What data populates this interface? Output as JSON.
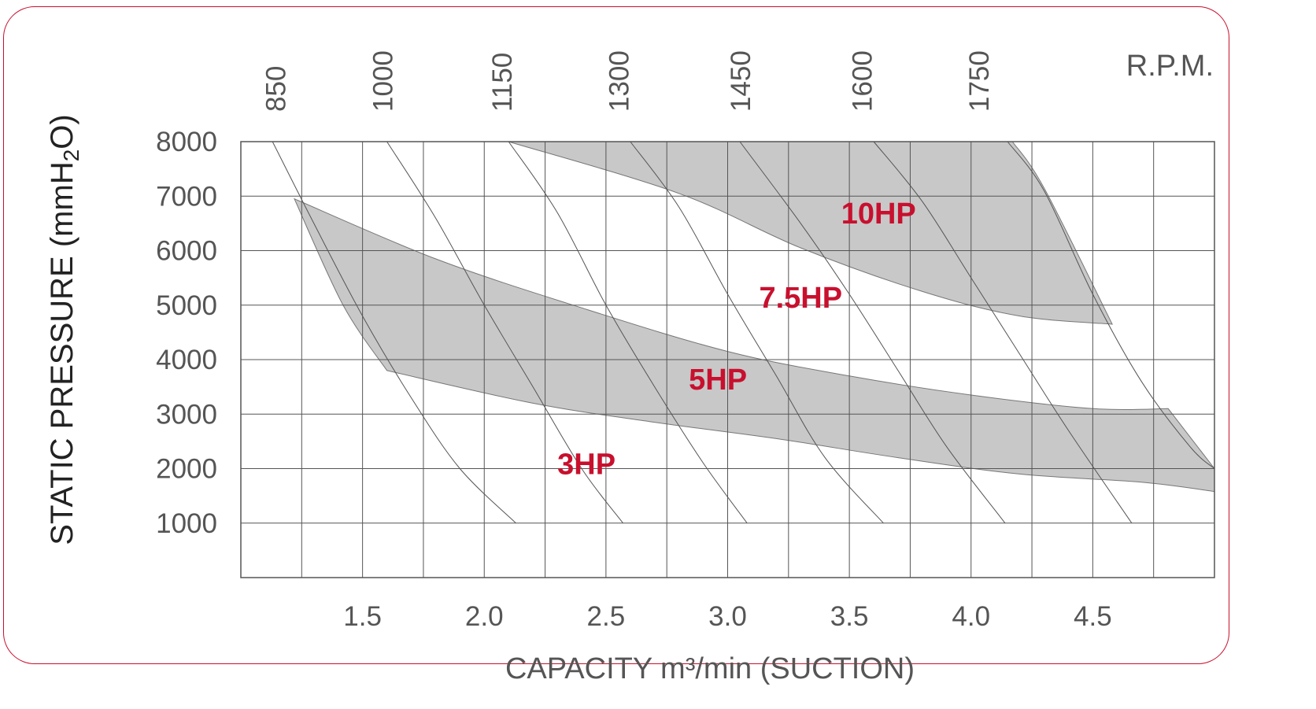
{
  "chart_data": {
    "type": "line",
    "xlabel": "CAPACITY m³/min (SUCTION)",
    "ylabel": "STATIC PRESSURE (mmH",
    "ylabel_sub": "2",
    "ylabel_end": "O)",
    "x2label": "R.P.M.",
    "xlim": [
      1.0,
      5.0
    ],
    "ylim": [
      0,
      8000
    ],
    "grid": true,
    "x_ticks": [
      {
        "v": 1.5,
        "label": "1.5"
      },
      {
        "v": 2.0,
        "label": "2.0"
      },
      {
        "v": 2.5,
        "label": "2.5"
      },
      {
        "v": 3.0,
        "label": "3.0"
      },
      {
        "v": 3.5,
        "label": "3.5"
      },
      {
        "v": 4.0,
        "label": "4.0"
      },
      {
        "v": 4.5,
        "label": "4.5"
      }
    ],
    "y_ticks": [
      {
        "v": 1000,
        "label": "1000"
      },
      {
        "v": 2000,
        "label": "2000"
      },
      {
        "v": 3000,
        "label": "3000"
      },
      {
        "v": 4000,
        "label": "4000"
      },
      {
        "v": 5000,
        "label": "5000"
      },
      {
        "v": 6000,
        "label": "6000"
      },
      {
        "v": 7000,
        "label": "7000"
      },
      {
        "v": 8000,
        "label": "8000"
      }
    ],
    "rpm_labels": [
      {
        "label": "850",
        "x": 1.14
      },
      {
        "label": "1000",
        "x": 1.58
      },
      {
        "label": "1150",
        "x": 2.07
      },
      {
        "label": "1300",
        "x": 2.55
      },
      {
        "label": "1450",
        "x": 3.05
      },
      {
        "label": "1600",
        "x": 3.55
      },
      {
        "label": "1750",
        "x": 4.03
      }
    ],
    "rpm_curves": [
      {
        "name": "850",
        "x": [
          1.13,
          1.3,
          1.5,
          1.7,
          1.9,
          2.13
        ],
        "y": [
          8000,
          6500,
          4800,
          3300,
          2000,
          1000
        ]
      },
      {
        "name": "1000",
        "x": [
          1.6,
          1.8,
          2.0,
          2.2,
          2.4,
          2.57
        ],
        "y": [
          8000,
          6600,
          5000,
          3500,
          2000,
          1000
        ]
      },
      {
        "name": "1150",
        "x": [
          2.1,
          2.3,
          2.5,
          2.7,
          2.9,
          3.08
        ],
        "y": [
          8000,
          6700,
          5000,
          3500,
          2100,
          1000
        ]
      },
      {
        "name": "1300",
        "x": [
          2.6,
          2.8,
          3.0,
          3.2,
          3.4,
          3.64
        ],
        "y": [
          8000,
          6800,
          5200,
          3700,
          2200,
          1000
        ]
      },
      {
        "name": "1450",
        "x": [
          3.05,
          3.3,
          3.5,
          3.7,
          3.9,
          4.14
        ],
        "y": [
          8000,
          6500,
          5200,
          3800,
          2400,
          1000
        ]
      },
      {
        "name": "1600",
        "x": [
          3.6,
          3.8,
          4.0,
          4.2,
          4.4,
          4.66
        ],
        "y": [
          8000,
          6900,
          5500,
          4100,
          2700,
          1000
        ]
      },
      {
        "name": "1750",
        "x": [
          4.15,
          4.3,
          4.5,
          4.7,
          4.9,
          5.0
        ],
        "y": [
          8000,
          7100,
          5200,
          3600,
          2400,
          2000
        ]
      }
    ],
    "bands": [
      {
        "name": "5HP",
        "upper": {
          "x": [
            1.22,
            1.8,
            2.4,
            3.0,
            3.5,
            4.0,
            4.5,
            4.81
          ],
          "y": [
            6950,
            5850,
            4950,
            4150,
            3700,
            3350,
            3100,
            3100
          ]
        },
        "lower": {
          "x": [
            1.6,
            2.2,
            2.7,
            3.2,
            3.7,
            4.2,
            4.7,
            5.0
          ],
          "y": [
            3800,
            3200,
            2850,
            2550,
            2200,
            1900,
            1750,
            1580
          ]
        },
        "left": {
          "x": [
            1.22,
            1.42,
            1.6
          ],
          "y": [
            6950,
            5000,
            3800
          ]
        },
        "right": {
          "x": [
            4.81,
            5.0
          ],
          "y": [
            3100,
            2000
          ]
        }
      },
      {
        "name": "10HP",
        "upper": {
          "x": [
            2.02,
            4.17
          ],
          "y": [
            8000,
            8000
          ]
        },
        "lower": {
          "x": [
            2.1,
            2.8,
            3.3,
            3.8,
            4.2,
            4.58
          ],
          "y": [
            8000,
            7050,
            6050,
            5250,
            4800,
            4650
          ]
        },
        "right": {
          "x": [
            4.17,
            4.3,
            4.58
          ],
          "y": [
            8000,
            7150,
            4650
          ]
        }
      }
    ],
    "annotations": [
      {
        "text": "3HP",
        "x": 2.42,
        "y": 1900
      },
      {
        "text": "5HP",
        "x": 2.96,
        "y": 3450
      },
      {
        "text": "7.5HP",
        "x": 3.3,
        "y": 4950
      },
      {
        "text": "10HP",
        "x": 3.62,
        "y": 6500
      }
    ]
  },
  "colors": {
    "band": "#c8c8c8",
    "grid": "#555555",
    "accent": "#c8102e",
    "text": "#555555"
  }
}
